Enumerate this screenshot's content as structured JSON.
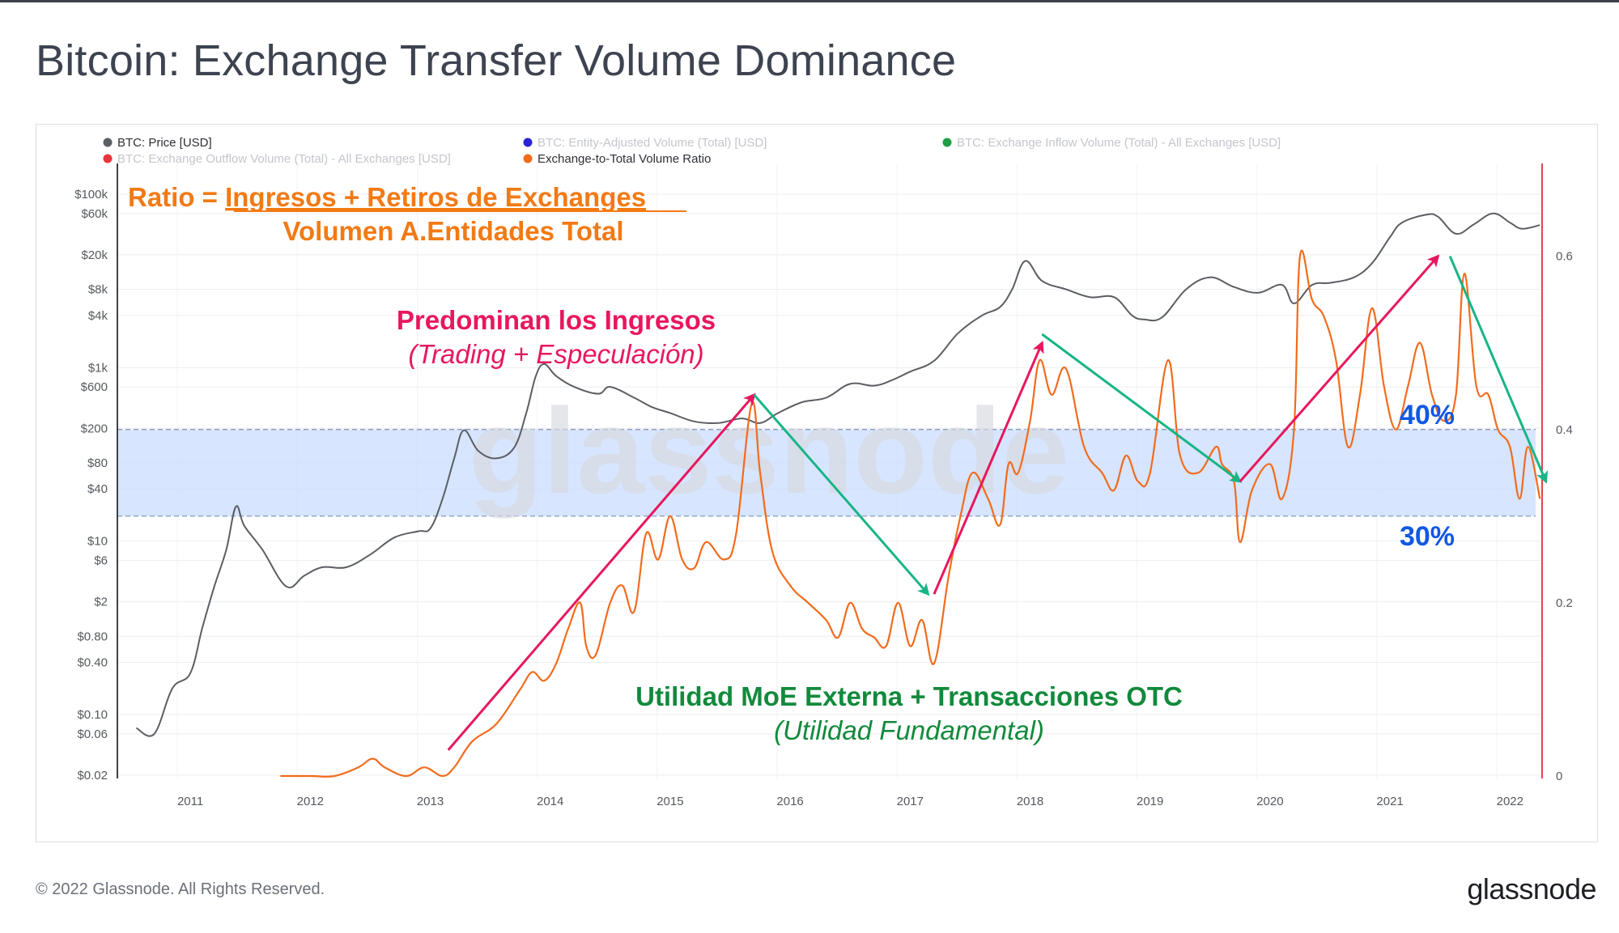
{
  "title": "Bitcoin: Exchange Transfer Volume Dominance",
  "footer": {
    "copyright": "© 2022 Glassnode. All Rights Reserved.",
    "logo": "glassnode"
  },
  "watermark": "glassnode",
  "colors": {
    "price": "#5b5e63",
    "ratio": "#f26b1d",
    "band": "#c9dcff",
    "band_border": "#7d90b7",
    "pink": "#e8175d",
    "teal": "#17b585",
    "green": "#128a3c",
    "blue": "#1257e5",
    "orange_text": "#f27a14",
    "right_axis": "#e0454f"
  },
  "legend": [
    {
      "label": "BTC: Price [USD]",
      "color": "#5b5e63",
      "active": true
    },
    {
      "label": "BTC: Entity-Adjusted Volume (Total) [USD]",
      "color": "#2a22d6",
      "active": false
    },
    {
      "label": "BTC: Exchange Inflow Volume (Total) - All Exchanges [USD]",
      "color": "#1f9e45",
      "active": false
    },
    {
      "label": "BTC: Exchange Outflow Volume (Total) - All Exchanges [USD]",
      "color": "#e8343a",
      "active": false
    },
    {
      "label": "Exchange-to-Total Volume Ratio",
      "color": "#f26b1d",
      "active": true
    }
  ],
  "annotations": {
    "formula_left": "Ratio = ",
    "formula_numerator": "Ingresos + Retiros de Exchanges",
    "formula_denominator": "Volumen A.Entidades Total",
    "inflow_title": "Predominan los Ingresos",
    "inflow_sub": "(Trading + Especulación)",
    "utility_title": "Utilidad MoE Externa + Transacciones OTC",
    "utility_sub": "(Utilidad Fundamental)",
    "band_top_label": "40%",
    "band_bottom_label": "30%"
  },
  "chart_data": {
    "type": "line",
    "x_ticks": [
      "2011",
      "2012",
      "2013",
      "2014",
      "2015",
      "2016",
      "2017",
      "2018",
      "2019",
      "2020",
      "2021",
      "2022"
    ],
    "y_left_ticks": [
      "$100k",
      "$60k",
      "$20k",
      "$8k",
      "$4k",
      "$1k",
      "$600",
      "$200",
      "$80",
      "$40",
      "$10",
      "$6",
      "$2",
      "$0.80",
      "$0.40",
      "$0.10",
      "$0.06",
      "$0.02"
    ],
    "y_left_scale": "log",
    "y_right_ticks": [
      "0.6",
      "0.4",
      "0.2",
      "0"
    ],
    "y_right_range": [
      0,
      0.68
    ],
    "band": [
      0.3,
      0.4
    ],
    "series": [
      {
        "name": "BTC: Price [USD]",
        "axis": "left",
        "x": [
          2010.55,
          2010.7,
          2010.85,
          2011.0,
          2011.1,
          2011.2,
          2011.3,
          2011.38,
          2011.45,
          2011.6,
          2011.8,
          2011.95,
          2012.1,
          2012.3,
          2012.5,
          2012.7,
          2012.9,
          2013.0,
          2013.1,
          2013.2,
          2013.28,
          2013.4,
          2013.55,
          2013.7,
          2013.8,
          2013.88,
          2013.95,
          2014.05,
          2014.2,
          2014.4,
          2014.5,
          2014.7,
          2014.85,
          2015.0,
          2015.2,
          2015.4,
          2015.6,
          2015.75,
          2015.9,
          2016.1,
          2016.3,
          2016.5,
          2016.7,
          2016.85,
          2017.0,
          2017.2,
          2017.4,
          2017.6,
          2017.75,
          2017.85,
          2017.96,
          2018.1,
          2018.3,
          2018.5,
          2018.7,
          2018.85,
          2018.95,
          2019.1,
          2019.3,
          2019.5,
          2019.7,
          2019.9,
          2020.1,
          2020.2,
          2020.35,
          2020.5,
          2020.7,
          2020.85,
          2021.0,
          2021.1,
          2021.3,
          2021.4,
          2021.55,
          2021.7,
          2021.86,
          2022.0,
          2022.1,
          2022.25
        ],
        "y": [
          0.07,
          0.06,
          0.2,
          0.3,
          1.0,
          3.0,
          8.0,
          25.0,
          15.0,
          8.0,
          3.0,
          4.0,
          5.0,
          5.0,
          7.0,
          11.0,
          13.0,
          14.0,
          30.0,
          90.0,
          190.0,
          110.0,
          90.0,
          120.0,
          300.0,
          800.0,
          1100.0,
          800.0,
          600.0,
          500.0,
          600.0,
          450.0,
          350.0,
          300.0,
          240.0,
          230.0,
          260.0,
          230.0,
          300.0,
          400.0,
          450.0,
          650.0,
          620.0,
          720.0,
          900.0,
          1200.0,
          2500.0,
          4000.0,
          5000.0,
          8000.0,
          17000.0,
          10000.0,
          8000.0,
          6500.0,
          6500.0,
          4000.0,
          3600.0,
          3800.0,
          8000.0,
          11000.0,
          8500.0,
          7300.0,
          9000.0,
          5500.0,
          9000.0,
          9500.0,
          11000.0,
          16000.0,
          32000.0,
          47000.0,
          58000.0,
          55000.0,
          35000.0,
          45000.0,
          60000.0,
          47000.0,
          40000.0,
          44000.0
        ]
      },
      {
        "name": "Exchange-to-Total Volume Ratio",
        "axis": "right",
        "x": [
          2011.75,
          2012.0,
          2012.2,
          2012.4,
          2012.52,
          2012.62,
          2012.8,
          2012.95,
          2013.1,
          2013.2,
          2013.35,
          2013.55,
          2013.75,
          2013.85,
          2013.95,
          2014.05,
          2014.15,
          2014.25,
          2014.3,
          2014.38,
          2014.5,
          2014.6,
          2014.7,
          2014.8,
          2014.9,
          2015.0,
          2015.1,
          2015.2,
          2015.3,
          2015.45,
          2015.55,
          2015.68,
          2015.75,
          2015.85,
          2016.0,
          2016.15,
          2016.3,
          2016.4,
          2016.5,
          2016.6,
          2016.7,
          2016.8,
          2016.9,
          2017.0,
          2017.1,
          2017.2,
          2017.32,
          2017.42,
          2017.52,
          2017.65,
          2017.75,
          2017.82,
          2017.9,
          2018.0,
          2018.08,
          2018.18,
          2018.3,
          2018.45,
          2018.6,
          2018.7,
          2018.8,
          2018.9,
          2019.0,
          2019.15,
          2019.25,
          2019.4,
          2019.55,
          2019.6,
          2019.7,
          2019.75,
          2019.85,
          2020.0,
          2020.1,
          2020.2,
          2020.25,
          2020.35,
          2020.45,
          2020.55,
          2020.65,
          2020.75,
          2020.85,
          2020.95,
          2021.05,
          2021.15,
          2021.25,
          2021.35,
          2021.45,
          2021.55,
          2021.62,
          2021.72,
          2021.82,
          2021.9,
          2022.0,
          2022.08,
          2022.15,
          2022.25
        ],
        "y": [
          0.0,
          0.0,
          0.0,
          0.01,
          0.02,
          0.01,
          0.0,
          0.01,
          0.0,
          0.01,
          0.04,
          0.06,
          0.1,
          0.12,
          0.11,
          0.13,
          0.17,
          0.2,
          0.15,
          0.14,
          0.2,
          0.22,
          0.19,
          0.28,
          0.25,
          0.3,
          0.25,
          0.24,
          0.27,
          0.25,
          0.28,
          0.43,
          0.35,
          0.26,
          0.22,
          0.2,
          0.18,
          0.16,
          0.2,
          0.17,
          0.16,
          0.15,
          0.2,
          0.15,
          0.18,
          0.13,
          0.23,
          0.3,
          0.35,
          0.32,
          0.29,
          0.36,
          0.35,
          0.41,
          0.48,
          0.44,
          0.47,
          0.38,
          0.35,
          0.33,
          0.37,
          0.34,
          0.35,
          0.48,
          0.37,
          0.35,
          0.38,
          0.36,
          0.34,
          0.27,
          0.33,
          0.36,
          0.32,
          0.4,
          0.6,
          0.55,
          0.53,
          0.48,
          0.38,
          0.44,
          0.54,
          0.45,
          0.4,
          0.45,
          0.5,
          0.44,
          0.41,
          0.44,
          0.58,
          0.45,
          0.44,
          0.4,
          0.38,
          0.32,
          0.38,
          0.32
        ]
      }
    ],
    "trend_arrows": [
      {
        "color": "pink",
        "from": [
          2013.15,
          0.03
        ],
        "to": [
          2015.7,
          0.44
        ]
      },
      {
        "color": "teal",
        "from": [
          2015.7,
          0.44
        ],
        "to": [
          2017.15,
          0.21
        ]
      },
      {
        "color": "pink",
        "from": [
          2017.2,
          0.21
        ],
        "to": [
          2018.1,
          0.5
        ]
      },
      {
        "color": "teal",
        "from": [
          2018.1,
          0.51
        ],
        "to": [
          2019.75,
          0.34
        ]
      },
      {
        "color": "pink",
        "from": [
          2019.75,
          0.34
        ],
        "to": [
          2021.4,
          0.6
        ]
      },
      {
        "color": "teal",
        "from": [
          2021.5,
          0.6
        ],
        "to": [
          2022.3,
          0.34
        ]
      }
    ]
  }
}
